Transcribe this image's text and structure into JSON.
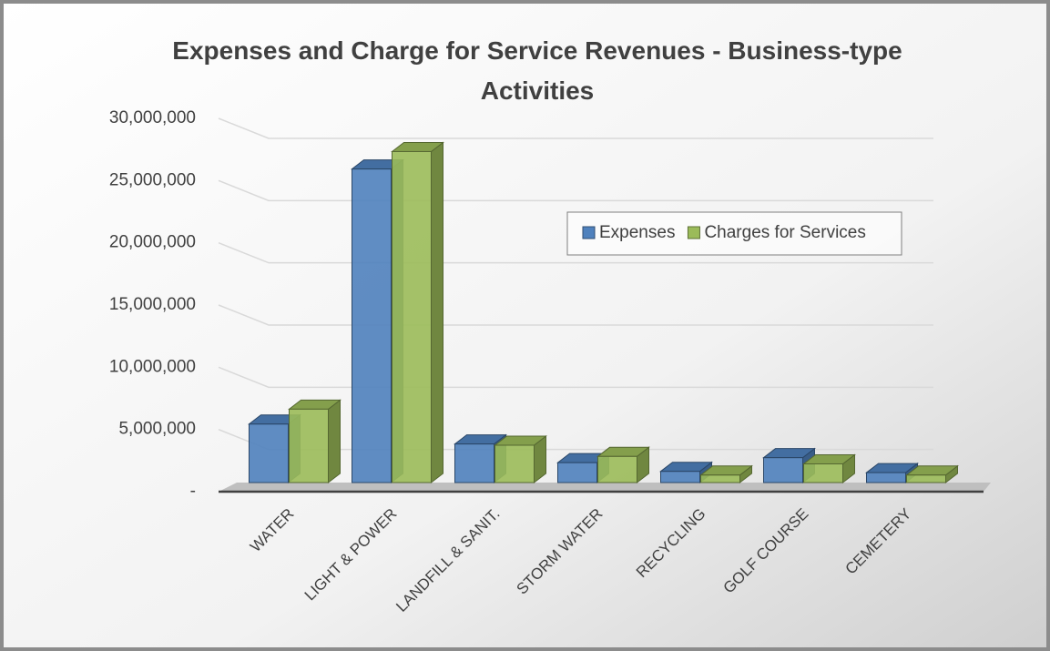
{
  "chart_data": {
    "type": "bar3d",
    "title": "Expenses and Charge for Service Revenues - Business-type Activities",
    "categories": [
      "WATER",
      "LIGHT & POWER",
      "LANDFILL & SANIT.",
      "STORM WATER",
      "RECYCLING",
      "GOLF COURSE",
      "CEMETERY"
    ],
    "series": [
      {
        "name": "Expenses",
        "color": "#4f81bd",
        "values": [
          4700000,
          25200000,
          3100000,
          1600000,
          900000,
          2000000,
          800000
        ]
      },
      {
        "name": "Charges for Services",
        "color": "#9bbb59",
        "values": [
          5900000,
          26600000,
          3000000,
          2100000,
          600000,
          1500000,
          600000
        ]
      }
    ],
    "ylim": [
      0,
      30000000
    ],
    "yticks": [
      {
        "value": 0,
        "label": "-"
      },
      {
        "value": 5000000,
        "label": "5,000,000"
      },
      {
        "value": 10000000,
        "label": "10,000,000"
      },
      {
        "value": 15000000,
        "label": "15,000,000"
      },
      {
        "value": 20000000,
        "label": "20,000,000"
      },
      {
        "value": 25000000,
        "label": "25,000,000"
      },
      {
        "value": 30000000,
        "label": "30,000,000"
      }
    ],
    "grid": true,
    "legend": "upper right"
  }
}
